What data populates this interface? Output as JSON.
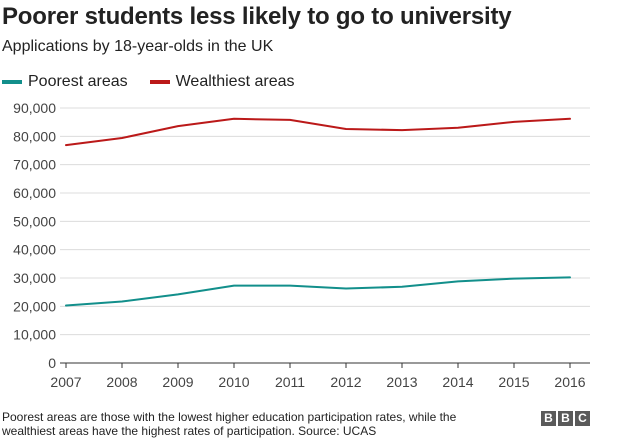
{
  "header": {
    "title": "Poorer students less likely to go to university",
    "subtitle": "Applications by 18-year-olds in the UK"
  },
  "footer": {
    "note": "Poorest areas are those with the lowest higher education participation rates, while the wealthiest areas have the highest rates of participation. Source: UCAS",
    "logo_letters": [
      "B",
      "B",
      "C"
    ]
  },
  "colors": {
    "poorest": "#128F8B",
    "wealthiest": "#BB1919",
    "grid": "#dcdcdc",
    "axis": "#333333",
    "logo": "#5a5a5a"
  },
  "chart_data": {
    "type": "line",
    "title": "Poorer students less likely to go to university",
    "subtitle": "Applications by 18-year-olds in the UK",
    "xlabel": "",
    "ylabel": "",
    "categories": [
      "2007",
      "2008",
      "2009",
      "2010",
      "2011",
      "2012",
      "2013",
      "2014",
      "2015",
      "2016"
    ],
    "y_ticks": [
      0,
      10000,
      20000,
      30000,
      40000,
      50000,
      60000,
      70000,
      80000,
      90000
    ],
    "y_tick_labels": [
      "0",
      "10,000",
      "20,000",
      "30,000",
      "40,000",
      "50,000",
      "60,000",
      "70,000",
      "80,000",
      "90,000"
    ],
    "ylim": [
      0,
      90000
    ],
    "grid": true,
    "legend_position": "top-left",
    "series": [
      {
        "name": "Poorest areas",
        "color": "#128F8B",
        "values": [
          20300,
          21700,
          24200,
          27300,
          27300,
          26300,
          26900,
          28800,
          29800,
          30200
        ]
      },
      {
        "name": "Wealthiest areas",
        "color": "#BB1919",
        "values": [
          76900,
          79400,
          83600,
          86200,
          85800,
          82600,
          82200,
          83000,
          85100,
          86200
        ]
      }
    ]
  }
}
